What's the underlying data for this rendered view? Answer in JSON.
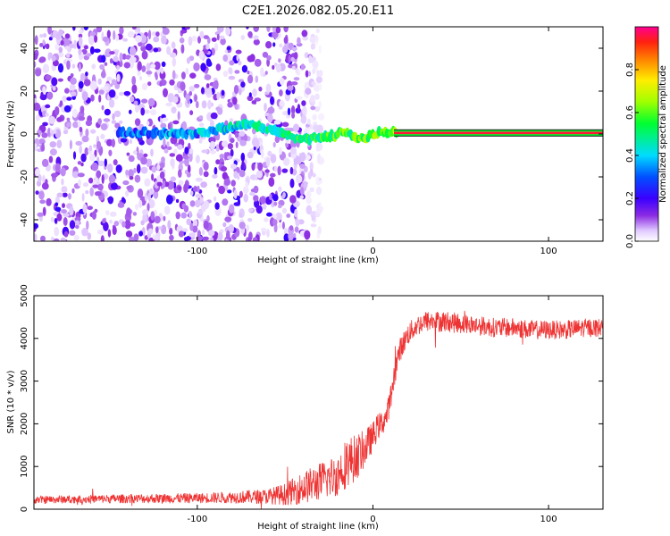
{
  "title": "C2E1.2026.082.05.20.E11",
  "colors": {
    "snr_line": "#ee3333",
    "axis": "#000000",
    "background": "#ffffff"
  },
  "chart_data": [
    {
      "type": "heatmap",
      "name": "spectrogram",
      "xlabel": "Height of straight line (km)",
      "ylabel": "Frequency (Hz)",
      "xlim": [
        -193,
        131
      ],
      "ylim": [
        -50,
        50
      ],
      "x_ticks": [
        -100,
        0,
        100
      ],
      "x_tick_labels": [
        "-100",
        "0",
        "100"
      ],
      "y_ticks": [
        -40,
        -20,
        0,
        20,
        40
      ],
      "y_tick_labels": [
        "-40",
        "-20",
        "0",
        "20",
        "40"
      ],
      "tone_frequency_hz": 0.5,
      "signal_start_km": -145,
      "noise_fade_km": -45,
      "colorbar": {
        "label": "Normalized spectral amplitude",
        "range": [
          0.0,
          1.0
        ],
        "ticks": [
          0.0,
          0.2,
          0.4,
          0.6,
          0.8
        ],
        "tick_labels": [
          "0.0",
          "0.2",
          "0.4",
          "0.6",
          "0.8"
        ]
      }
    },
    {
      "type": "line",
      "name": "snr",
      "xlabel": "Height of straight line (km)",
      "ylabel": "SNR (10 * v/v)",
      "xlim": [
        -193,
        131
      ],
      "ylim": [
        0,
        5000
      ],
      "x_ticks": [
        -100,
        0,
        100
      ],
      "x_tick_labels": [
        "-100",
        "0",
        "100"
      ],
      "y_ticks": [
        0,
        1000,
        2000,
        3000,
        4000,
        5000
      ],
      "y_tick_labels": [
        "0",
        "1000",
        "2000",
        "3000",
        "4000",
        "5000"
      ],
      "series": [
        {
          "name": "SNR",
          "x": [
            -193,
            -160,
            -130,
            -100,
            -80,
            -60,
            -50,
            -40,
            -30,
            -20,
            -15,
            -10,
            -5,
            0,
            3,
            5,
            8,
            10,
            12,
            15,
            20,
            25,
            30,
            40,
            50,
            60,
            70,
            80,
            90,
            100,
            110,
            120,
            131
          ],
          "y": [
            220,
            240,
            250,
            260,
            280,
            300,
            350,
            500,
            650,
            800,
            1100,
            1200,
            1400,
            1700,
            1950,
            2000,
            2200,
            2600,
            3100,
            3700,
            4100,
            4300,
            4400,
            4400,
            4350,
            4300,
            4250,
            4250,
            4200,
            4200,
            4200,
            4250,
            4250
          ],
          "noise_amplitude": [
            90,
            100,
            110,
            120,
            140,
            180,
            260,
            380,
            450,
            500,
            600,
            550,
            450,
            350,
            300,
            300,
            300,
            300,
            300,
            280,
            260,
            250,
            250,
            250,
            240,
            230,
            230,
            230,
            230,
            220,
            220,
            220,
            220
          ]
        }
      ]
    }
  ]
}
